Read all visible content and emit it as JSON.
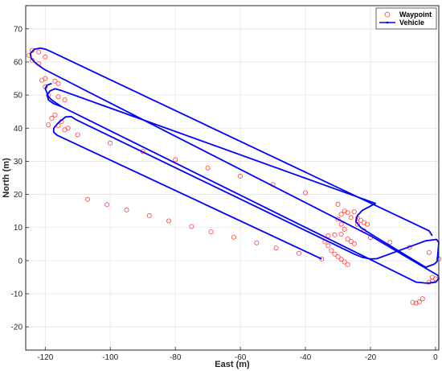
{
  "chart_data": {
    "type": "line",
    "xlabel": "East (m)",
    "ylabel": "North (m)",
    "xlim": [
      -126,
      1
    ],
    "ylim": [
      -27,
      77
    ],
    "xticks": [
      -120,
      -100,
      -80,
      -60,
      -40,
      -20,
      0
    ],
    "yticks": [
      -20,
      -10,
      0,
      10,
      20,
      30,
      40,
      50,
      60,
      70
    ],
    "grid": true,
    "legend_position": "top-right",
    "colors": {
      "waypoint": "#ff4040",
      "vehicle": "#0000ff",
      "grid": "#e6e6e6",
      "axis": "#262626"
    },
    "series": [
      {
        "name": "Waypoint",
        "marker": "circle",
        "points": [
          [
            -35,
            0.5
          ],
          [
            -42,
            2.2
          ],
          [
            -49,
            3.8
          ],
          [
            -55,
            5.4
          ],
          [
            -62,
            7.1
          ],
          [
            -69,
            8.7
          ],
          [
            -75,
            10.3
          ],
          [
            -82,
            12.0
          ],
          [
            -88,
            13.6
          ],
          [
            -95,
            15.3
          ],
          [
            -101,
            16.9
          ],
          [
            -107,
            18.5
          ],
          [
            -113,
            40.0
          ],
          [
            -115,
            42.0
          ],
          [
            -117,
            44.0
          ],
          [
            -119,
            41.0
          ],
          [
            -118,
            43.0
          ],
          [
            -110,
            38.0
          ],
          [
            -100,
            35.5
          ],
          [
            -90,
            33.0
          ],
          [
            -80,
            30.5
          ],
          [
            -70,
            28.0
          ],
          [
            -60,
            25.5
          ],
          [
            -50,
            23.0
          ],
          [
            -40,
            20.5
          ],
          [
            -30,
            17.0
          ],
          [
            -28,
            15.0
          ],
          [
            -26,
            13.0
          ],
          [
            -24,
            11.0
          ],
          [
            -22,
            9.0
          ],
          [
            -20,
            7.0
          ],
          [
            -14,
            5.5
          ],
          [
            -8,
            4.0
          ],
          [
            -2,
            2.5
          ],
          [
            1,
            0.5
          ],
          [
            -31,
            2.0
          ],
          [
            -30,
            1.2
          ],
          [
            -29,
            0.4
          ],
          [
            -28,
            -0.4
          ],
          [
            -27,
            -1.2
          ],
          [
            -32,
            3.0
          ],
          [
            -33,
            4.5
          ],
          [
            -34,
            5.7
          ],
          [
            -33,
            7.5
          ],
          [
            -31,
            7.8
          ],
          [
            -29,
            8.0
          ],
          [
            -27,
            6.5
          ],
          [
            -26,
            5.8
          ],
          [
            -25,
            5.1
          ],
          [
            -28,
            9.5
          ],
          [
            -29,
            11.0
          ],
          [
            -30,
            12.5
          ],
          [
            -29,
            14.0
          ],
          [
            -27,
            14.5
          ],
          [
            -25,
            14.8
          ],
          [
            -24,
            12.8
          ],
          [
            -23,
            12.2
          ],
          [
            -22,
            11.5
          ],
          [
            -21,
            11.0
          ],
          [
            -1,
            -5.0
          ],
          [
            0,
            -5.5
          ],
          [
            -1,
            -6.2
          ],
          [
            -2,
            -6.5
          ],
          [
            -4,
            -11.5
          ],
          [
            -5,
            -12.5
          ],
          [
            -6,
            -12.8
          ],
          [
            -7,
            -12.6
          ],
          [
            -120,
            61.5
          ],
          [
            -122,
            63.0
          ],
          [
            -124,
            63.5
          ],
          [
            -125,
            62.0
          ],
          [
            -124,
            60.5
          ],
          [
            -122,
            59.5
          ],
          [
            -120,
            52.5
          ],
          [
            -121,
            54.5
          ],
          [
            -120,
            55.0
          ],
          [
            -116,
            53.5
          ],
          [
            -117,
            54.2
          ],
          [
            -119,
            50.0
          ],
          [
            -116,
            49.5
          ],
          [
            -114,
            48.5
          ],
          [
            -114,
            39.5
          ],
          [
            -116,
            40.8
          ]
        ]
      },
      {
        "name": "Vehicle",
        "marker": "dot",
        "paths": [
          [
            [
              -35,
              0.5
            ],
            [
              -116.4,
              37.9
            ],
            [
              -117.4,
              38.8
            ],
            [
              -117.4,
              40.0
            ],
            [
              -116.0,
              41.6
            ],
            [
              -113.8,
              43.4
            ],
            [
              -112.0,
              43.5
            ],
            [
              -110.6,
              42.6
            ],
            [
              -25.0,
              2.0
            ],
            [
              -22.5,
              1.0
            ],
            [
              -20.0,
              0.5
            ],
            [
              -18.0,
              0.6
            ],
            [
              -15.5,
              1.5
            ],
            [
              -3.0,
              6.0
            ],
            [
              0.3,
              6.4
            ],
            [
              1.0,
              5.5
            ],
            [
              0.5,
              -0.2
            ],
            [
              -0.3,
              -1.0
            ]
          ],
          [
            [
              -0.3,
              -1.0
            ],
            [
              -3.0,
              -2.0
            ],
            [
              -19.0,
              7.5
            ],
            [
              -23.0,
              10.0
            ],
            [
              -24.5,
              11.8
            ],
            [
              -24.0,
              13.6
            ],
            [
              -22.5,
              15.2
            ],
            [
              -20.5,
              16.2
            ],
            [
              -18.5,
              17.3
            ],
            [
              -114.8,
              51.3
            ],
            [
              -117.0,
              51.9
            ],
            [
              -118.6,
              51.2
            ],
            [
              -119.4,
              50.0
            ],
            [
              -119.0,
              48.5
            ],
            [
              -117.4,
              47.4
            ],
            [
              -115.0,
              46.5
            ],
            [
              -6.0,
              -6.5
            ],
            [
              -2.5,
              -6.8
            ],
            [
              0.0,
              -6.5
            ],
            [
              1.0,
              -5.5
            ],
            [
              0.8,
              -4.5
            ]
          ],
          [
            [
              0.8,
              -4.5
            ],
            [
              -20.0,
              7.5
            ],
            [
              -120.4,
              57.8
            ],
            [
              -122.8,
              59.5
            ],
            [
              -124.3,
              61.0
            ],
            [
              -124.6,
              62.5
            ],
            [
              -123.4,
              63.8
            ],
            [
              -121.5,
              64.2
            ],
            [
              -119.8,
              63.8
            ],
            [
              -118.0,
              63.0
            ],
            [
              -2.0,
              9.0
            ],
            [
              -1.0,
              7.5
            ]
          ],
          [
            [
              -118.0,
              53.5
            ],
            [
              -119.4,
              53.0
            ],
            [
              -120.0,
              52.0
            ],
            [
              -119.0,
              49.5
            ],
            [
              -118.0,
              48.5
            ],
            [
              -116.5,
              47.5
            ],
            [
              -115.0,
              46.5
            ]
          ]
        ]
      }
    ]
  }
}
